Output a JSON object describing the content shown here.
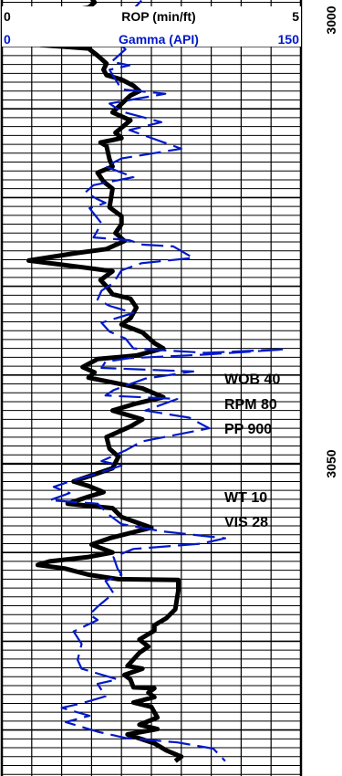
{
  "chart_data": {
    "type": "line",
    "depth_labels": [
      {
        "depth": 3000,
        "label": "3000"
      },
      {
        "depth": 3050,
        "label": "3050"
      }
    ],
    "y_range": [
      2997.5,
      3083.5
    ],
    "header": {
      "rop_label": "ROP (min/ft)",
      "rop_min": "0",
      "rop_max": "5",
      "gamma_label": "Gamma (API)",
      "gamma_min": "0",
      "gamma_max": "150"
    },
    "annotations": [
      {
        "depth": 3040.4,
        "text": "WOB 40"
      },
      {
        "depth": 3043.2,
        "text": "RPM 80"
      },
      {
        "depth": 3046,
        "text": "PP 900"
      },
      {
        "depth": 3053.7,
        "text": "WT 10"
      },
      {
        "depth": 3056.5,
        "text": "VIS 28"
      }
    ],
    "series": [
      {
        "key": "rop",
        "x_range": [
          0,
          5
        ],
        "color": "#000000",
        "style": "solid",
        "points": [
          [
            1.5,
            2997.5
          ],
          [
            1.55,
            2998.0
          ],
          [
            1.45,
            2998.6
          ],
          [
            0.35,
            2999.8
          ],
          [
            1.1,
            3000.7
          ],
          [
            0.6,
            3001.3
          ],
          [
            1.1,
            3002.0
          ],
          [
            0.65,
            3002.8
          ],
          [
            1.45,
            3003.2
          ],
          [
            1.6,
            3004.0
          ],
          [
            1.75,
            3004.9
          ],
          [
            1.7,
            3005.6
          ],
          [
            1.75,
            3006.2
          ],
          [
            2.0,
            3006.7
          ],
          [
            2.2,
            3007.4
          ],
          [
            2.3,
            3008.0
          ],
          [
            2.15,
            3008.5
          ],
          [
            1.85,
            3010.4
          ],
          [
            2.15,
            3011.3
          ],
          [
            1.9,
            3012.7
          ],
          [
            2.0,
            3013.3
          ],
          [
            1.65,
            3013.8
          ],
          [
            1.75,
            3014.2
          ],
          [
            1.8,
            3015.7
          ],
          [
            1.85,
            3016.5
          ],
          [
            1.6,
            3017.2
          ],
          [
            1.7,
            3018.2
          ],
          [
            1.85,
            3019.0
          ],
          [
            1.8,
            3021.1
          ],
          [
            2.0,
            3022.1
          ],
          [
            2.0,
            3023.0
          ],
          [
            1.9,
            3024.0
          ],
          [
            2.05,
            3024.9
          ],
          [
            1.75,
            3025.8
          ],
          [
            1.2,
            3026.3
          ],
          [
            0.45,
            3027.1
          ],
          [
            1.4,
            3027.9
          ],
          [
            1.85,
            3028.3
          ],
          [
            1.65,
            3029.3
          ],
          [
            1.75,
            3030.0
          ],
          [
            1.85,
            3030.9
          ],
          [
            2.15,
            3031.4
          ],
          [
            2.25,
            3032.4
          ],
          [
            2.15,
            3033.6
          ],
          [
            2.0,
            3034.3
          ],
          [
            2.35,
            3035.2
          ],
          [
            2.55,
            3036.4
          ],
          [
            2.7,
            3037.0
          ],
          [
            2.25,
            3037.8
          ],
          [
            1.6,
            3038.2
          ],
          [
            1.35,
            3039.1
          ],
          [
            1.55,
            3039.7
          ],
          [
            1.45,
            3040.3
          ],
          [
            2.35,
            3041.5
          ],
          [
            2.7,
            3042.5
          ],
          [
            2.25,
            3043.2
          ],
          [
            1.85,
            3044.0
          ],
          [
            2.35,
            3045.0
          ],
          [
            2.15,
            3045.8
          ],
          [
            1.75,
            3047.0
          ],
          [
            1.8,
            3048.3
          ],
          [
            1.95,
            3049.2
          ],
          [
            1.85,
            3050.5
          ],
          [
            1.2,
            3052.0
          ],
          [
            1.45,
            3052.5
          ],
          [
            1.7,
            3053.2
          ],
          [
            1.45,
            3053.7
          ],
          [
            1.1,
            3054.5
          ],
          [
            1.85,
            3055.0
          ],
          [
            2.0,
            3056.0
          ],
          [
            2.5,
            3057.2
          ],
          [
            1.8,
            3058.4
          ],
          [
            1.5,
            3059.1
          ],
          [
            1.85,
            3060.0
          ],
          [
            1.45,
            3060.5
          ],
          [
            0.8,
            3061.0
          ],
          [
            0.6,
            3061.4
          ],
          [
            1.05,
            3061.8
          ],
          [
            1.45,
            3062.5
          ],
          [
            1.95,
            3063.0
          ],
          [
            2.95,
            3063.1
          ],
          [
            2.95,
            3064.3
          ],
          [
            2.9,
            3066.4
          ],
          [
            2.75,
            3067.4
          ],
          [
            2.55,
            3068.2
          ],
          [
            2.55,
            3068.8
          ],
          [
            2.3,
            3069.8
          ],
          [
            2.45,
            3070.6
          ],
          [
            2.3,
            3071.3
          ],
          [
            2.1,
            3072.8
          ],
          [
            2.35,
            3073.1
          ],
          [
            2.05,
            3073.8
          ],
          [
            2.15,
            3074.3
          ],
          [
            2.2,
            3075.2
          ],
          [
            2.55,
            3075.3
          ],
          [
            2.45,
            3075.8
          ],
          [
            2.55,
            3076.3
          ],
          [
            2.2,
            3076.9
          ],
          [
            2.5,
            3077.4
          ],
          [
            2.6,
            3078.6
          ],
          [
            2.3,
            3079.4
          ],
          [
            2.6,
            3079.9
          ],
          [
            2.1,
            3080.5
          ],
          [
            2.55,
            3081.5
          ],
          [
            2.75,
            3082.3
          ],
          [
            3.0,
            3083.0
          ],
          [
            2.9,
            3083.5
          ]
        ]
      },
      {
        "key": "gamma",
        "x_range": [
          0,
          150
        ],
        "color": "#0018c8",
        "style": "dashed",
        "points": [
          [
            70,
            2997.8
          ],
          [
            62,
            2999.7
          ],
          [
            56,
            3001.9
          ],
          [
            62,
            3003.3
          ],
          [
            55,
            3004.7
          ],
          [
            64,
            3005.1
          ],
          [
            54,
            3005.6
          ],
          [
            60,
            3007.8
          ],
          [
            82,
            3008.3
          ],
          [
            54,
            3009.4
          ],
          [
            60,
            3010.3
          ],
          [
            80,
            3011.5
          ],
          [
            64,
            3012.4
          ],
          [
            90,
            3014.5
          ],
          [
            60,
            3015.6
          ],
          [
            52,
            3016.5
          ],
          [
            66,
            3017.7
          ],
          [
            46,
            3018.6
          ],
          [
            42,
            3019.4
          ],
          [
            48,
            3020.2
          ],
          [
            52,
            3020.6
          ],
          [
            44,
            3021.2
          ],
          [
            50,
            3022.9
          ],
          [
            46,
            3024.5
          ],
          [
            64,
            3024.8
          ],
          [
            70,
            3025.3
          ],
          [
            86,
            3025.5
          ],
          [
            96,
            3026.8
          ],
          [
            70,
            3027.4
          ],
          [
            60,
            3028.2
          ],
          [
            56,
            3029.6
          ],
          [
            50,
            3030.5
          ],
          [
            48,
            3031.5
          ],
          [
            54,
            3032.2
          ],
          [
            66,
            3033.0
          ],
          [
            50,
            3034.1
          ],
          [
            54,
            3035.1
          ],
          [
            62,
            3035.9
          ],
          [
            66,
            3037.0
          ],
          [
            102,
            3037.5
          ],
          [
            142,
            3037.1
          ],
          [
            102,
            3037.7
          ],
          [
            64,
            3038.1
          ],
          [
            52,
            3038.5
          ],
          [
            50,
            3039.2
          ],
          [
            96,
            3039.6
          ],
          [
            72,
            3040.4
          ],
          [
            56,
            3041.7
          ],
          [
            52,
            3042.3
          ],
          [
            88,
            3042.7
          ],
          [
            72,
            3044.0
          ],
          [
            94,
            3044.8
          ],
          [
            104,
            3046.0
          ],
          [
            70,
            3047.5
          ],
          [
            62,
            3048.5
          ],
          [
            50,
            3049.7
          ],
          [
            60,
            3050.2
          ],
          [
            48,
            3051.1
          ],
          [
            34,
            3052.0
          ],
          [
            26,
            3052.6
          ],
          [
            34,
            3053.3
          ],
          [
            24,
            3054.1
          ],
          [
            48,
            3054.5
          ],
          [
            54,
            3055.8
          ],
          [
            60,
            3056.8
          ],
          [
            80,
            3057.6
          ],
          [
            112,
            3058.4
          ],
          [
            100,
            3059.0
          ],
          [
            66,
            3059.6
          ],
          [
            56,
            3060.5
          ],
          [
            58,
            3061.8
          ],
          [
            60,
            3062.5
          ],
          [
            52,
            3063.2
          ],
          [
            56,
            3064.6
          ],
          [
            48,
            3066.1
          ],
          [
            44,
            3067.0
          ],
          [
            48,
            3067.6
          ],
          [
            36,
            3068.9
          ],
          [
            40,
            3070.3
          ],
          [
            38,
            3072.1
          ],
          [
            40,
            3073.1
          ],
          [
            58,
            3074.3
          ],
          [
            48,
            3074.8
          ],
          [
            52,
            3076.2
          ],
          [
            40,
            3077.0
          ],
          [
            30,
            3077.5
          ],
          [
            44,
            3078.4
          ],
          [
            32,
            3079.1
          ],
          [
            48,
            3080.2
          ],
          [
            62,
            3080.9
          ],
          [
            88,
            3081.4
          ],
          [
            106,
            3082.1
          ],
          [
            112,
            3083.5
          ]
        ]
      }
    ]
  }
}
